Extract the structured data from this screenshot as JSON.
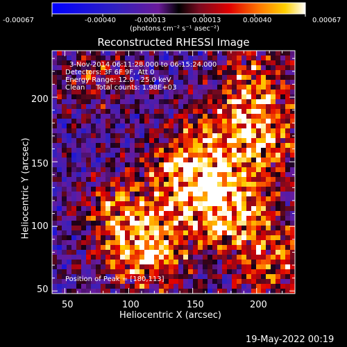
{
  "colorbar": {
    "tick_labels": [
      "-0.00067",
      "-0.00040",
      "-0.00013",
      "0.00013",
      "0.00040",
      "0.00067"
    ],
    "units_html": "(photons cm⁻² s⁻¹ asec⁻²)"
  },
  "chart_data": {
    "type": "heatmap",
    "title": "Reconstructed RHESSI Image",
    "xlabel": "Heliocentric X (arcsec)",
    "ylabel": "Heliocentric Y (arcsec)",
    "xlim": [
      40,
      230
    ],
    "ylim": [
      48,
      236
    ],
    "x_ticks": [
      50,
      100,
      150,
      200
    ],
    "y_ticks": [
      50,
      100,
      150,
      200
    ],
    "value_range": [
      -0.00067,
      0.00067
    ],
    "hotspots": [
      {
        "x": 180,
        "y": 113,
        "weight": 1.0
      },
      {
        "x": 155,
        "y": 155,
        "weight": 0.8
      },
      {
        "x": 205,
        "y": 170,
        "weight": 0.75
      },
      {
        "x": 115,
        "y": 80,
        "weight": 0.85
      },
      {
        "x": 195,
        "y": 210,
        "weight": 0.6
      },
      {
        "x": 90,
        "y": 110,
        "weight": 0.5
      },
      {
        "x": 215,
        "y": 70,
        "weight": 0.6
      },
      {
        "x": 140,
        "y": 125,
        "weight": 0.45
      },
      {
        "x": 75,
        "y": 215,
        "weight": 0.35
      }
    ],
    "peak_position": [
      180,
      113
    ]
  },
  "annotations": {
    "line1": "3-Nov-2014 06:11:28.000 to 06:15:24.000",
    "line2": "Detectors: 3F 6F 9F, Att 0",
    "line3": "Energy Range: 12.0 - 25.0 keV",
    "line4": "Clean     Total counts: 1.98E+03",
    "peak": "Position of Peak = [180,113]"
  },
  "footer": {
    "date": "19-May-2022 00:19"
  }
}
